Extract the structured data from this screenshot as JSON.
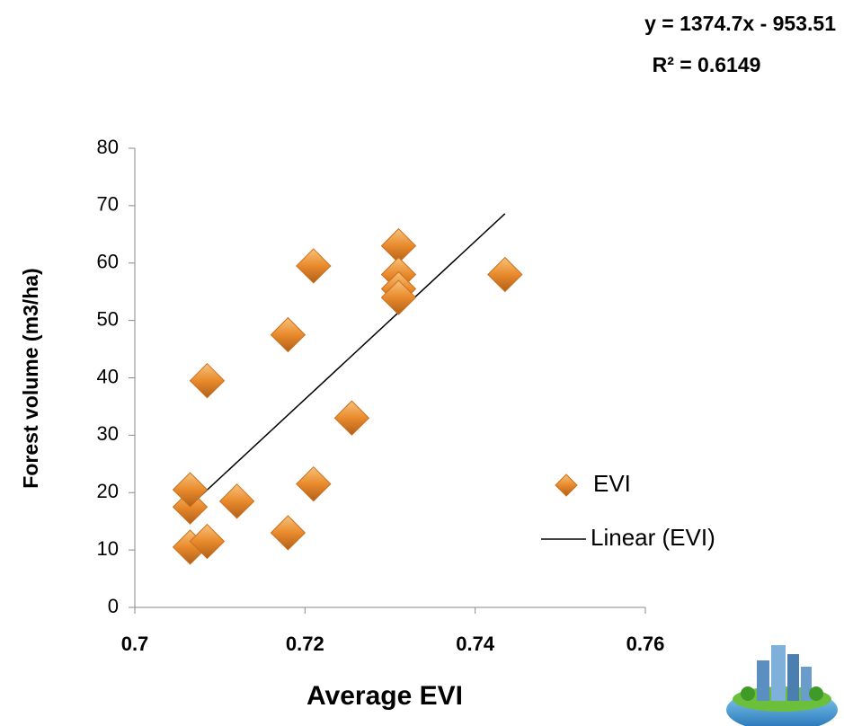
{
  "chart_data": {
    "type": "scatter",
    "x_label": "Average EVI",
    "y_label": "Forest volume (m3/ha)",
    "xlim": [
      0.7,
      0.76
    ],
    "xticks": [
      0.7,
      0.72,
      0.74,
      0.76
    ],
    "ylim": [
      0,
      80
    ],
    "yticks": [
      0,
      10,
      20,
      30,
      40,
      50,
      60,
      70,
      80
    ],
    "grid": false,
    "legend": "right",
    "series": [
      {
        "name": "EVI",
        "color": "#e98a2c",
        "x": [
          0.7065,
          0.7085,
          0.7065,
          0.7065,
          0.712,
          0.7085,
          0.718,
          0.718,
          0.721,
          0.721,
          0.7255,
          0.731,
          0.731,
          0.731,
          0.731,
          0.7435
        ],
        "values": [
          10.5,
          11.5,
          17.5,
          20.5,
          18.5,
          39.5,
          13,
          47.5,
          21.5,
          59.5,
          33,
          63,
          58,
          55.5,
          54,
          58
        ]
      }
    ],
    "trendline": {
      "name": "Linear (EVI)",
      "color": "#000000",
      "x": [
        0.707,
        0.7435
      ],
      "values": [
        18.4,
        68.6
      ],
      "equation": "y = 1374.7x - 953.51",
      "r_squared": "R² = 0.6149"
    }
  }
}
